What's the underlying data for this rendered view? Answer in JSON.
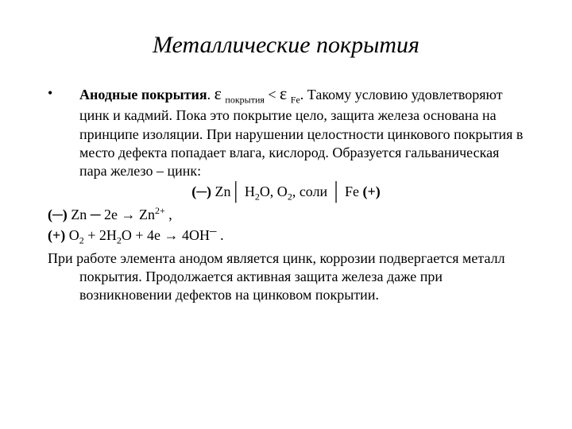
{
  "colors": {
    "background": "#ffffff",
    "text": "#000000"
  },
  "typography": {
    "family": "Times New Roman",
    "title_fontsize_pt": 30,
    "title_style": "italic",
    "body_fontsize_pt": 18,
    "subscript_fontsize_pt": 12
  },
  "title": "Металлические покрытия",
  "bullet": {
    "marker": "•",
    "lead_bold": "Анодные покрытия",
    "lead_tail": ". ",
    "eps_symbol": "ε",
    "eps1_sub": "покрытия",
    "lt": " < ",
    "eps2_sub": "Fe",
    "rest": ". Такому условию удовлетворяют цинк и кадмий. Пока это покрытие цело, защита железа основана на принципе изоляции. При нарушении целостности цинкового покрытия в место дефекта попадает влага, кислород. Образуется гальваническая пара железо – цинк:"
  },
  "cell_line": {
    "open": "(─) ",
    "zn": "Zn",
    "bar": "│",
    "mid_a": " H",
    "mid_a_sub": "2",
    "mid_b": "O, O",
    "mid_b_sub": "2",
    "mid_c": ", соли ",
    "fe": " Fe ",
    "close": "(+)"
  },
  "anode_eq": {
    "open": "(─) ",
    "a": "Zn  ─   2e  →  Zn",
    "sup": "2+",
    "tail": " ,"
  },
  "cathode_eq": {
    "open": "(+) ",
    "a": "O",
    "a_sub": "2",
    "b": "   +   2H",
    "b_sub": "2",
    "c": "O   +   4e  →  4OH",
    "sup": "─",
    "tail": " ."
  },
  "closing": "При работе элемента анодом является цинк, коррозии подвергается металл покрытия. Продолжается активная защита железа даже при возникновении дефектов на цинковом покрытии."
}
